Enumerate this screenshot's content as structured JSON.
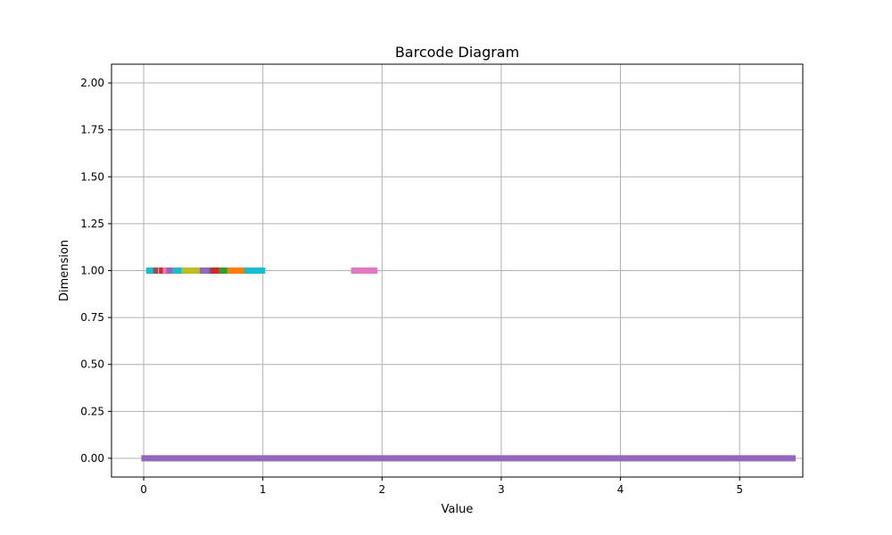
{
  "chart_data": {
    "type": "barcode",
    "title": "Barcode Diagram",
    "xlabel": "Value",
    "ylabel": "Dimension",
    "xlim": [
      -0.27,
      5.53
    ],
    "ylim": [
      -0.1,
      2.1
    ],
    "x_ticks": [
      0,
      1,
      2,
      3,
      4,
      5
    ],
    "x_tick_labels": [
      "0",
      "1",
      "2",
      "3",
      "4",
      "5"
    ],
    "y_ticks": [
      0,
      0.25,
      0.5,
      0.75,
      1.0,
      1.25,
      1.5,
      1.75,
      2.0
    ],
    "y_tick_labels": [
      "0.00",
      "0.25",
      "0.50",
      "0.75",
      "1.00",
      "1.25",
      "1.50",
      "1.75",
      "2.00"
    ],
    "grid": true,
    "bars": [
      {
        "dimension": 0,
        "start": -0.02,
        "end": 5.47,
        "color": "#9467bd"
      },
      {
        "dimension": 1,
        "start": 0.02,
        "end": 0.09,
        "color": "#17becf"
      },
      {
        "dimension": 1,
        "start": 0.08,
        "end": 0.12,
        "color": "#8c564b"
      },
      {
        "dimension": 1,
        "start": 0.12,
        "end": 0.14,
        "color": "#e377c2"
      },
      {
        "dimension": 1,
        "start": 0.13,
        "end": 0.16,
        "color": "#d62728"
      },
      {
        "dimension": 1,
        "start": 0.16,
        "end": 0.2,
        "color": "#e377c2"
      },
      {
        "dimension": 1,
        "start": 0.19,
        "end": 0.25,
        "color": "#9467bd"
      },
      {
        "dimension": 1,
        "start": 0.24,
        "end": 0.32,
        "color": "#17becf"
      },
      {
        "dimension": 1,
        "start": 0.32,
        "end": 0.48,
        "color": "#bcbd22"
      },
      {
        "dimension": 1,
        "start": 0.47,
        "end": 0.56,
        "color": "#9467bd"
      },
      {
        "dimension": 1,
        "start": 0.55,
        "end": 0.58,
        "color": "#8c564b"
      },
      {
        "dimension": 1,
        "start": 0.57,
        "end": 0.64,
        "color": "#d62728"
      },
      {
        "dimension": 1,
        "start": 0.63,
        "end": 0.71,
        "color": "#2ca02c"
      },
      {
        "dimension": 1,
        "start": 0.7,
        "end": 0.85,
        "color": "#ff7f0e"
      },
      {
        "dimension": 1,
        "start": 0.84,
        "end": 1.02,
        "color": "#17becf"
      },
      {
        "dimension": 1,
        "start": 1.74,
        "end": 1.96,
        "color": "#e377c2"
      }
    ]
  }
}
